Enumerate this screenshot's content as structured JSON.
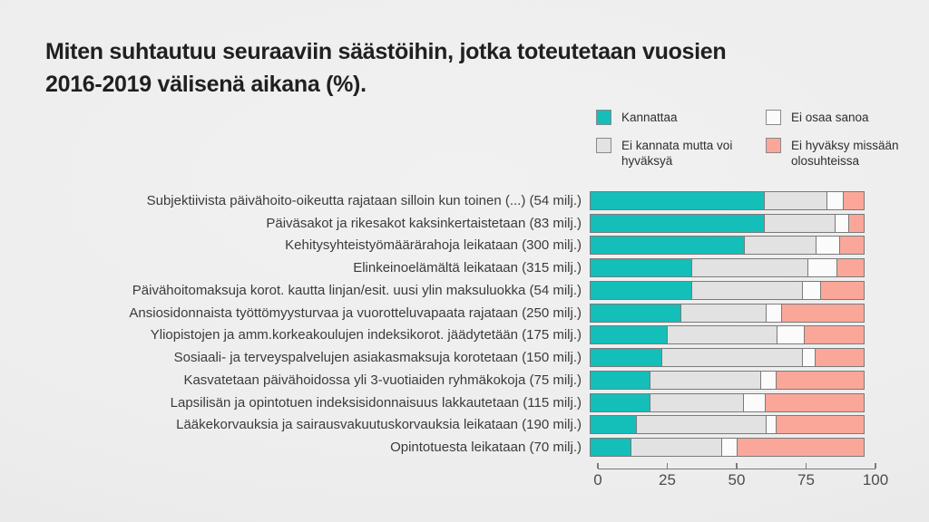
{
  "title_lines": [
    "Miten suhtautuu seuraaviin säästöihin, jotka toteutetaan vuosien",
    "2016-2019 välisenä aikana (%)."
  ],
  "legend": {
    "items": [
      {
        "label": "Kannattaa",
        "color": "#14bfb9"
      },
      {
        "label": "Ei osaa sanoa",
        "color": "#fbfbfb"
      },
      {
        "label": "Ei kannata mutta voi hyväksyä",
        "color": "#e2e2e2"
      },
      {
        "label": "Ei hyväksy missään olosuhteissa",
        "color": "#faa79a"
      }
    ]
  },
  "chart_data": {
    "type": "bar",
    "stacked": true,
    "orientation": "horizontal",
    "unit": "%",
    "xlim": [
      0,
      100
    ],
    "x_ticks": [
      "0",
      "25",
      "50",
      "75",
      "100"
    ],
    "categories": [
      "Subjektiivista päivähoito-oikeutta rajataan silloin kun toinen (...) (54 milj.)",
      "Päiväsakot ja rikesakot kaksinkertaistetaan (83 milj.)",
      "Kehitysyhteistyömäärärahoja leikataan (300 milj.)",
      "Elinkeinoelämältä leikataan (315 milj.)",
      "Päivähoitomaksuja korot. kautta linjan/esit. uusi ylin maksuluokka (54 milj.)",
      "Ansiosidonnaista työttömyysturvaa ja vuorotteluvapaata rajataan (250 milj.)",
      "Yliopistojen ja amm.korkeakoulujen indeksikorot. jäädytetään (175 milj.)",
      "Sosiaali- ja terveyspalvelujen asiakasmaksuja korotetaan (150 milj.)",
      "Kasvatetaan päivähoidossa yli 3-vuotiaiden ryhmäkokoja (75 milj.)",
      "Lapsilisän ja opintotuen indeksisidonnaisuus lakkautetaan (115 milj.)",
      "Lääkekorvauksia ja sairausvakuutuskorvauksia leikataan (190 milj.)",
      "Opintotuesta leikataan (70 milj.)"
    ],
    "series": [
      {
        "name": "Kannattaa",
        "color": "#14bfb9",
        "values": [
          63,
          63,
          56,
          37,
          37,
          33,
          28,
          26,
          22,
          22,
          17,
          15
        ]
      },
      {
        "name": "Ei kannata mutta voi hyväksyä",
        "color": "#e2e2e2",
        "values": [
          23,
          26,
          26,
          42,
          40,
          31,
          40,
          51,
          40,
          34,
          47,
          33
        ]
      },
      {
        "name": "Ei osaa sanoa",
        "color": "#fbfbfb",
        "values": [
          6,
          5,
          9,
          11,
          7,
          6,
          10,
          5,
          6,
          8,
          4,
          6
        ]
      },
      {
        "name": "Ei hyväksy missään olosuhteissa",
        "color": "#faa79a",
        "values": [
          8,
          6,
          9,
          10,
          16,
          30,
          22,
          18,
          32,
          36,
          32,
          46
        ]
      }
    ]
  }
}
